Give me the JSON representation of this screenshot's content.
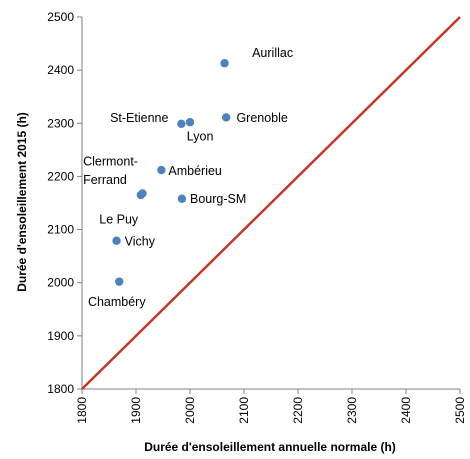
{
  "chart_data": {
    "type": "scatter",
    "xlabel": "Durée d'ensoleillement annuelle normale (h)",
    "ylabel": "Durée d'ensoleillement  2015 (h)",
    "xlim": [
      1800,
      2500
    ],
    "ylim": [
      1800,
      2500
    ],
    "xticks": [
      1800,
      1900,
      2000,
      2100,
      2200,
      2300,
      2400,
      2500
    ],
    "yticks": [
      1800,
      1900,
      2000,
      2100,
      2200,
      2300,
      2400,
      2500
    ],
    "grid": false,
    "reference_line": {
      "from": [
        1800,
        1800
      ],
      "to": [
        2500,
        2500
      ],
      "color": "#c0392b"
    },
    "point_color": "#4f81bd",
    "points": [
      {
        "x": 1864,
        "y": 2079
      },
      {
        "x": 1869,
        "y": 2002
      },
      {
        "x": 1909,
        "y": 2165
      },
      {
        "x": 1912,
        "y": 2168
      },
      {
        "x": 1947,
        "y": 2212
      },
      {
        "x": 1985,
        "y": 2158
      },
      {
        "x": 1984,
        "y": 2299
      },
      {
        "x": 2000,
        "y": 2302
      },
      {
        "x": 2064,
        "y": 2413
      },
      {
        "x": 2067,
        "y": 2311
      }
    ],
    "labels": [
      {
        "text": "Aurillac",
        "x": 2115,
        "y": 2425
      },
      {
        "text": "St-Etienne",
        "x": 1852,
        "y": 2302
      },
      {
        "text": "Grenoble",
        "x": 2086,
        "y": 2302
      },
      {
        "text": "Lyon",
        "x": 1994,
        "y": 2268
      },
      {
        "text": "Clermont-",
        "x": 1802,
        "y": 2221
      },
      {
        "text": "Ferrand",
        "x": 1802,
        "y": 2186
      },
      {
        "text": "Ambérieu",
        "x": 1960,
        "y": 2203
      },
      {
        "text": "Bourg-SM",
        "x": 2000,
        "y": 2150
      },
      {
        "text": "Le Puy",
        "x": 1832,
        "y": 2111
      },
      {
        "text": "Vichy",
        "x": 1879,
        "y": 2070
      },
      {
        "text": "Chambéry",
        "x": 1811,
        "y": 1956
      }
    ]
  }
}
